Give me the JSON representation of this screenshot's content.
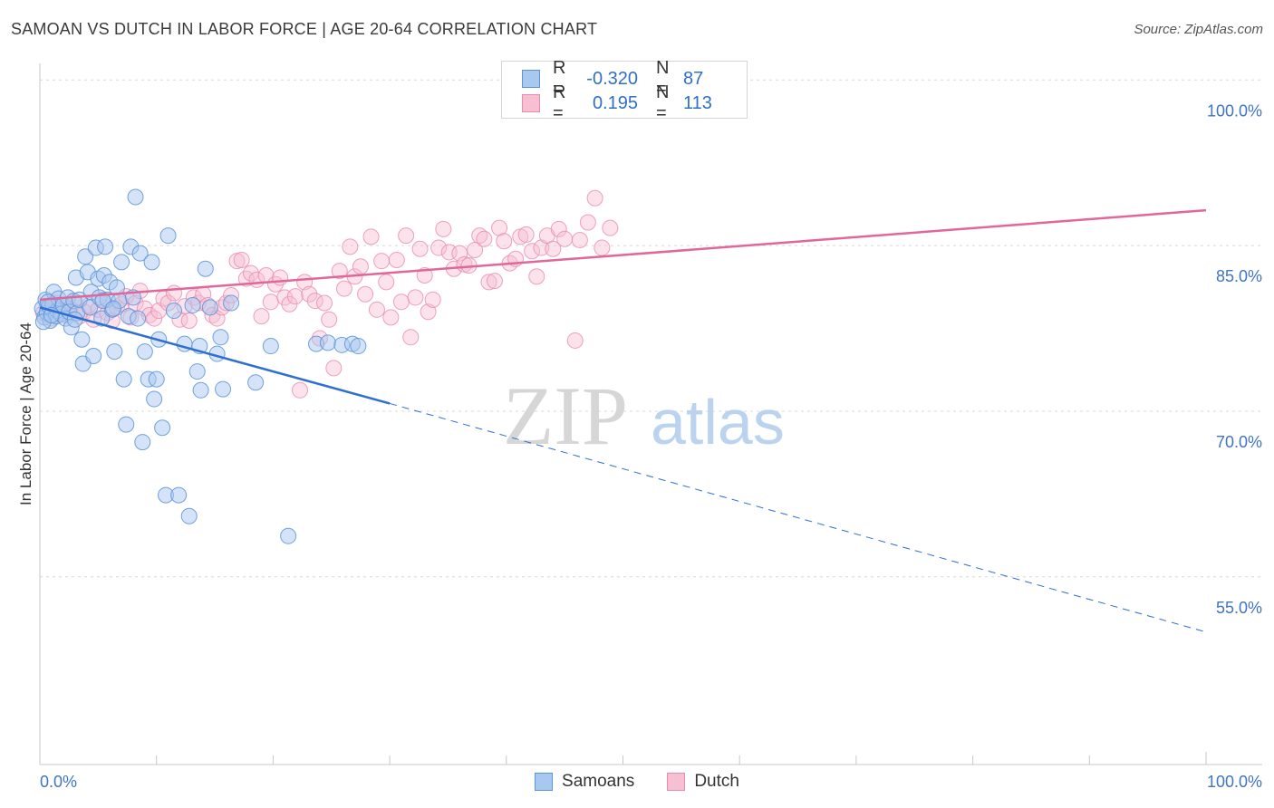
{
  "header": {
    "title": "SAMOAN VS DUTCH IN LABOR FORCE | AGE 20-64 CORRELATION CHART",
    "source": "Source: ZipAtlas.com"
  },
  "legend": {
    "samoan": {
      "r_label": "R =",
      "r_value": "-0.320",
      "n_label": "N =",
      "n_value": "87"
    },
    "dutch": {
      "r_label": "R =",
      "r_value": "0.195",
      "n_label": "N =",
      "n_value": "113"
    }
  },
  "bottom_legend": {
    "samoan_label": "Samoans",
    "dutch_label": "Dutch"
  },
  "watermark": {
    "zip": "ZIP",
    "atlas": "atlas"
  },
  "colors": {
    "samoan_fill": "#a9c8f0",
    "samoan_stroke": "#5b93d8",
    "samoan_line": "#2f6fd0",
    "dutch_fill": "#f6bfd2",
    "dutch_stroke": "#e98bb0",
    "dutch_line": "#e0679a",
    "tick_label": "#3f74c6",
    "grid": "#d8d8d8"
  },
  "chart_data": {
    "type": "scatter",
    "title": "SAMOAN VS DUTCH IN LABOR FORCE | AGE 20-64 CORRELATION CHART",
    "xlabel": "",
    "ylabel": "In Labor Force | Age 20-64",
    "xlim": [
      0,
      100
    ],
    "ylim": [
      38,
      101.5
    ],
    "x_tick_labels": {
      "left": "0.0%",
      "right": "100.0%"
    },
    "y_ticks": [
      {
        "value": 55,
        "label": "55.0%"
      },
      {
        "value": 70,
        "label": "70.0%"
      },
      {
        "value": 85,
        "label": "85.0%"
      },
      {
        "value": 100,
        "label": "100.0%"
      }
    ],
    "series": [
      {
        "name": "Samoans",
        "r": -0.32,
        "n": 87,
        "trend": {
          "solid": [
            [
              0,
              79.4
            ],
            [
              30,
              70.7
            ]
          ],
          "dashed": [
            [
              30,
              70.7
            ],
            [
              100,
              50.0
            ]
          ]
        },
        "points": [
          [
            0.2,
            79.3
          ],
          [
            0.4,
            78.5
          ],
          [
            0.5,
            80.1
          ],
          [
            0.6,
            78.9
          ],
          [
            0.8,
            79.5
          ],
          [
            0.9,
            78.2
          ],
          [
            1.1,
            79.7
          ],
          [
            1.2,
            80.8
          ],
          [
            1.4,
            78.6
          ],
          [
            1.5,
            79.1
          ],
          [
            1.6,
            80.2
          ],
          [
            1.8,
            78.8
          ],
          [
            2.0,
            79.6
          ],
          [
            2.2,
            78.4
          ],
          [
            2.4,
            80.3
          ],
          [
            2.5,
            79.0
          ],
          [
            2.7,
            77.6
          ],
          [
            2.9,
            80.0
          ],
          [
            3.1,
            82.1
          ],
          [
            3.2,
            78.9
          ],
          [
            3.4,
            80.1
          ],
          [
            3.6,
            76.5
          ],
          [
            3.7,
            74.3
          ],
          [
            3.9,
            84.0
          ],
          [
            4.1,
            82.6
          ],
          [
            4.3,
            79.4
          ],
          [
            4.4,
            80.8
          ],
          [
            4.6,
            75.0
          ],
          [
            4.8,
            84.8
          ],
          [
            5.0,
            82.0
          ],
          [
            5.1,
            80.3
          ],
          [
            5.3,
            78.4
          ],
          [
            5.5,
            82.3
          ],
          [
            5.6,
            84.9
          ],
          [
            5.8,
            80.1
          ],
          [
            6.0,
            81.7
          ],
          [
            6.2,
            79.2
          ],
          [
            6.4,
            75.4
          ],
          [
            6.6,
            81.2
          ],
          [
            6.8,
            80.0
          ],
          [
            7.0,
            83.5
          ],
          [
            7.2,
            72.9
          ],
          [
            7.4,
            68.8
          ],
          [
            7.6,
            78.6
          ],
          [
            7.8,
            84.9
          ],
          [
            8.0,
            80.3
          ],
          [
            8.2,
            89.4
          ],
          [
            8.4,
            78.4
          ],
          [
            8.6,
            84.3
          ],
          [
            8.8,
            67.2
          ],
          [
            9.0,
            75.4
          ],
          [
            9.3,
            72.9
          ],
          [
            9.6,
            83.5
          ],
          [
            9.8,
            71.1
          ],
          [
            10.0,
            72.9
          ],
          [
            10.2,
            76.5
          ],
          [
            10.5,
            68.5
          ],
          [
            10.8,
            62.4
          ],
          [
            11.0,
            85.9
          ],
          [
            11.5,
            79.1
          ],
          [
            11.9,
            62.4
          ],
          [
            12.4,
            76.1
          ],
          [
            12.8,
            60.5
          ],
          [
            13.1,
            79.6
          ],
          [
            13.5,
            73.6
          ],
          [
            13.7,
            75.9
          ],
          [
            13.8,
            71.9
          ],
          [
            14.2,
            82.9
          ],
          [
            14.6,
            79.4
          ],
          [
            15.2,
            75.2
          ],
          [
            15.5,
            76.7
          ],
          [
            15.7,
            72.0
          ],
          [
            16.4,
            79.8
          ],
          [
            18.5,
            72.6
          ],
          [
            19.8,
            75.9
          ],
          [
            21.3,
            58.7
          ],
          [
            23.7,
            76.1
          ],
          [
            24.7,
            76.2
          ],
          [
            25.9,
            76.0
          ],
          [
            26.8,
            76.1
          ],
          [
            27.3,
            75.9
          ],
          [
            0.3,
            78.1
          ],
          [
            0.7,
            79.9
          ],
          [
            1.0,
            78.7
          ],
          [
            3.0,
            78.3
          ],
          [
            5.4,
            80.0
          ],
          [
            6.3,
            79.3
          ]
        ]
      },
      {
        "name": "Dutch",
        "r": 0.195,
        "n": 113,
        "trend": {
          "solid": [
            [
              0,
              80.1
            ],
            [
              100,
              88.2
            ]
          ]
        },
        "points": [
          [
            0.3,
            78.9
          ],
          [
            0.6,
            79.5
          ],
          [
            1.0,
            78.4
          ],
          [
            1.4,
            79.8
          ],
          [
            1.8,
            79.1
          ],
          [
            2.2,
            78.7
          ],
          [
            2.6,
            79.3
          ],
          [
            3.0,
            79.9
          ],
          [
            3.4,
            78.6
          ],
          [
            3.8,
            79.0
          ],
          [
            4.2,
            79.6
          ],
          [
            4.6,
            78.3
          ],
          [
            5.0,
            79.2
          ],
          [
            5.4,
            80.1
          ],
          [
            5.8,
            78.9
          ],
          [
            6.2,
            78.2
          ],
          [
            6.6,
            79.4
          ],
          [
            7.0,
            79.7
          ],
          [
            7.4,
            80.4
          ],
          [
            7.8,
            78.5
          ],
          [
            8.2,
            79.8
          ],
          [
            8.6,
            80.9
          ],
          [
            9.0,
            79.3
          ],
          [
            9.4,
            78.7
          ],
          [
            9.8,
            78.4
          ],
          [
            10.2,
            79.1
          ],
          [
            10.6,
            80.2
          ],
          [
            11.0,
            79.8
          ],
          [
            11.5,
            80.7
          ],
          [
            12.0,
            78.3
          ],
          [
            12.4,
            79.5
          ],
          [
            12.8,
            78.2
          ],
          [
            13.2,
            80.3
          ],
          [
            13.6,
            79.8
          ],
          [
            14.0,
            80.6
          ],
          [
            14.4,
            79.6
          ],
          [
            14.8,
            78.7
          ],
          [
            15.2,
            78.4
          ],
          [
            15.6,
            79.4
          ],
          [
            16.0,
            79.8
          ],
          [
            16.4,
            80.5
          ],
          [
            16.9,
            83.6
          ],
          [
            17.3,
            83.7
          ],
          [
            17.7,
            82.0
          ],
          [
            18.1,
            82.5
          ],
          [
            18.6,
            81.9
          ],
          [
            19.0,
            78.6
          ],
          [
            19.4,
            82.3
          ],
          [
            19.8,
            79.9
          ],
          [
            20.2,
            81.5
          ],
          [
            20.6,
            82.1
          ],
          [
            21.0,
            80.3
          ],
          [
            21.4,
            79.7
          ],
          [
            21.9,
            80.4
          ],
          [
            22.3,
            71.9
          ],
          [
            22.7,
            81.7
          ],
          [
            23.1,
            80.6
          ],
          [
            23.6,
            80.0
          ],
          [
            24.0,
            76.6
          ],
          [
            24.4,
            79.8
          ],
          [
            24.8,
            78.3
          ],
          [
            25.2,
            73.9
          ],
          [
            25.7,
            82.7
          ],
          [
            26.1,
            81.1
          ],
          [
            26.6,
            84.9
          ],
          [
            27.0,
            82.2
          ],
          [
            27.5,
            83.1
          ],
          [
            27.9,
            80.6
          ],
          [
            28.4,
            85.8
          ],
          [
            28.9,
            79.2
          ],
          [
            29.3,
            83.6
          ],
          [
            29.7,
            81.7
          ],
          [
            30.1,
            78.5
          ],
          [
            30.6,
            83.7
          ],
          [
            31.0,
            79.9
          ],
          [
            31.4,
            85.9
          ],
          [
            31.8,
            76.7
          ],
          [
            32.2,
            80.3
          ],
          [
            32.6,
            84.7
          ],
          [
            33.0,
            82.3
          ],
          [
            33.3,
            79.0
          ],
          [
            33.7,
            80.1
          ],
          [
            34.2,
            84.8
          ],
          [
            34.6,
            86.5
          ],
          [
            35.1,
            84.4
          ],
          [
            35.5,
            82.9
          ],
          [
            36.0,
            84.3
          ],
          [
            36.4,
            83.3
          ],
          [
            36.8,
            83.2
          ],
          [
            37.3,
            84.6
          ],
          [
            37.7,
            85.9
          ],
          [
            38.1,
            85.6
          ],
          [
            38.5,
            81.7
          ],
          [
            39.0,
            81.8
          ],
          [
            39.4,
            86.6
          ],
          [
            39.8,
            85.4
          ],
          [
            40.3,
            83.4
          ],
          [
            40.8,
            83.8
          ],
          [
            41.2,
            85.8
          ],
          [
            41.7,
            86.0
          ],
          [
            42.2,
            84.5
          ],
          [
            42.6,
            82.2
          ],
          [
            43.0,
            84.8
          ],
          [
            43.5,
            85.9
          ],
          [
            44.0,
            84.7
          ],
          [
            44.5,
            86.5
          ],
          [
            45.0,
            85.6
          ],
          [
            45.9,
            76.4
          ],
          [
            46.3,
            85.5
          ],
          [
            47.0,
            87.1
          ],
          [
            47.6,
            89.3
          ],
          [
            48.2,
            84.8
          ],
          [
            48.9,
            86.6
          ]
        ]
      }
    ],
    "annotation": "ZIPatlas"
  }
}
